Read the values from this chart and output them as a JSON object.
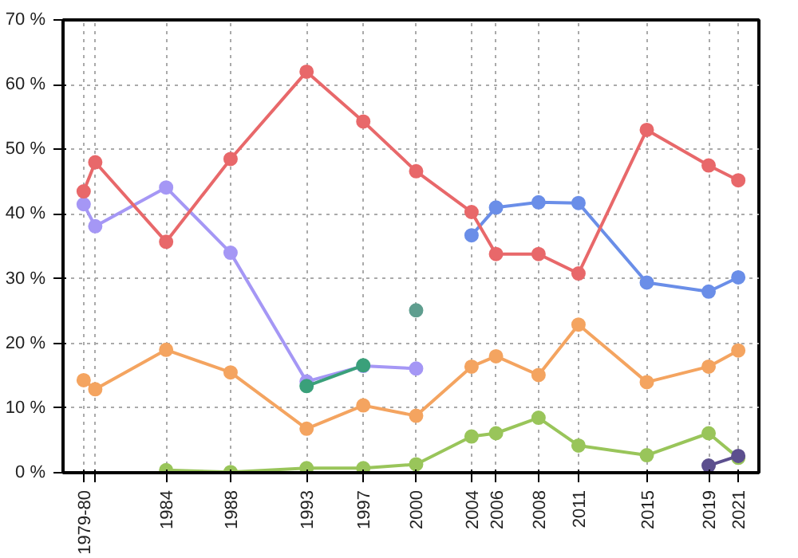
{
  "chart_data": {
    "type": "line",
    "marker": "circle",
    "grid": true,
    "xlim": [
      "1978-01",
      "2023-01"
    ],
    "ylim": [
      0,
      70
    ],
    "xticks": [
      {
        "value": "1979-05",
        "label": "1979-80"
      },
      {
        "value": "1980-02",
        "label": null
      },
      {
        "value": "1984-09",
        "label": "1984"
      },
      {
        "value": "1988-11",
        "label": "1988"
      },
      {
        "value": "1993-10",
        "label": "1993"
      },
      {
        "value": "1997-06",
        "label": "1997"
      },
      {
        "value": "2000-11",
        "label": "2000"
      },
      {
        "value": "2004-06",
        "label": "2004"
      },
      {
        "value": "2006-01",
        "label": "2006"
      },
      {
        "value": "2008-10",
        "label": "2008"
      },
      {
        "value": "2011-05",
        "label": "2011"
      },
      {
        "value": "2015-10",
        "label": "2015"
      },
      {
        "value": "2019-10",
        "label": "2019"
      },
      {
        "value": "2021-09",
        "label": "2021"
      }
    ],
    "yticks": [
      {
        "value": 0,
        "label": "0 %"
      },
      {
        "value": 10,
        "label": "10 %"
      },
      {
        "value": 20,
        "label": "20 %"
      },
      {
        "value": 30,
        "label": "30 %"
      },
      {
        "value": 40,
        "label": "40 %"
      },
      {
        "value": 50,
        "label": "50 %"
      },
      {
        "value": 60,
        "label": "60 %"
      },
      {
        "value": 70,
        "label": "70 %"
      }
    ],
    "series": [
      {
        "color": "#a597f5",
        "x": [
          "1979-05",
          "1980-02",
          "1984-09",
          "1988-11",
          "1993-10",
          "1997-06",
          "2000-11"
        ],
        "values": [
          41.5,
          38.1,
          44.1,
          34,
          14.1,
          16.5,
          16.1
        ]
      },
      {
        "color": "#6a8ee8",
        "x": [
          "2004-06",
          "2006-01",
          "2008-10",
          "2011-05",
          "2015-10",
          "2019-10",
          "2021-09"
        ],
        "values": [
          36.7,
          41,
          41.8,
          41.7,
          29.4,
          28,
          30.2
        ]
      },
      {
        "color": "#f4a460",
        "x": [
          "1979-05",
          "1980-02",
          "1984-09",
          "1988-11",
          "1993-10",
          "1997-06",
          "2000-11",
          "2004-06",
          "2006-01",
          "2008-10",
          "2011-05",
          "2015-10",
          "2019-10",
          "2021-09"
        ],
        "values": [
          14.3,
          12.9,
          19,
          15.5,
          6.8,
          10.4,
          8.8,
          16.4,
          18,
          15.1,
          22.9,
          14,
          16.4,
          18.9
        ]
      },
      {
        "color": "#99c55a",
        "x": [
          "1984-09",
          "1988-11",
          "1993-10",
          "1997-06",
          "2000-11",
          "2004-06",
          "2006-01",
          "2008-10",
          "2011-05",
          "2015-10",
          "2019-10",
          "2021-09"
        ],
        "values": [
          0.4,
          0.1,
          0.7,
          0.7,
          1.3,
          5.6,
          6.1,
          8.5,
          4.2,
          2.7,
          6.1,
          2.3
        ]
      },
      {
        "color": "#3aa07a",
        "x": [
          "1993-10",
          "1997-06"
        ],
        "values": [
          13.4,
          16.6
        ]
      },
      {
        "color": "#5f9e8f",
        "x": [
          "2000-11"
        ],
        "values": [
          25.1
        ]
      },
      {
        "color": "#5c4f8e",
        "x": [
          "2019-10",
          "2021-09"
        ],
        "values": [
          1.1,
          2.6
        ]
      },
      {
        "color": "#e8686a",
        "x": [
          "1979-05",
          "1980-02",
          "1984-09",
          "1988-11",
          "1993-10",
          "1997-06",
          "2000-11",
          "2004-06",
          "2006-01",
          "2008-10",
          "2011-05",
          "2015-10",
          "2019-10",
          "2021-09"
        ],
        "values": [
          43.5,
          48,
          35.7,
          48.5,
          62,
          54.3,
          46.6,
          40.3,
          33.8,
          33.8,
          30.8,
          53,
          47.5,
          45.2
        ]
      }
    ]
  }
}
